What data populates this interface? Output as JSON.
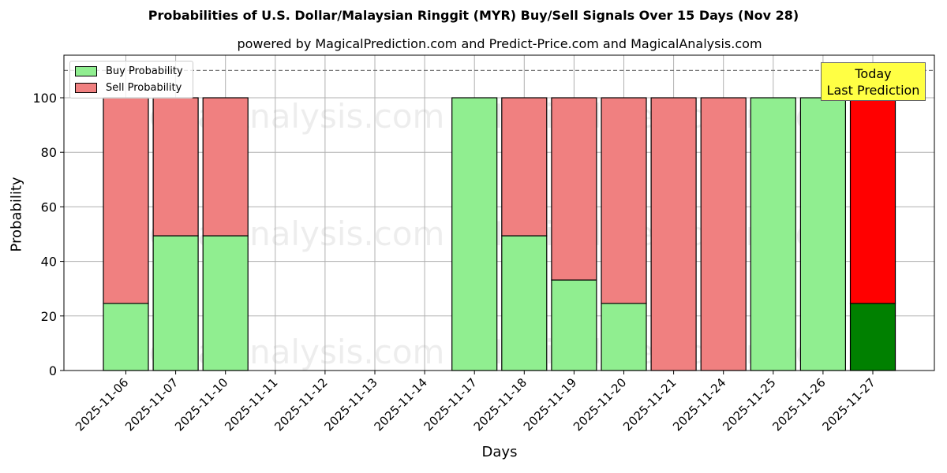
{
  "chart_data": {
    "type": "bar",
    "stacked": true,
    "title": "Probabilities of U.S. Dollar/Malaysian Ringgit (MYR) Buy/Sell Signals Over 15 Days (Nov 28)",
    "subtitle": "powered by MagicalPrediction.com and Predict-Price.com and MagicalAnalysis.com",
    "xlabel": "Days",
    "ylabel": "Probability",
    "ylim": [
      0,
      115
    ],
    "yticks": [
      0,
      20,
      40,
      60,
      80,
      100
    ],
    "reference_line": 110,
    "grid": true,
    "legend_position": "upper left",
    "categories": [
      "2025-11-06",
      "2025-11-07",
      "2025-11-10",
      "2025-11-11",
      "2025-11-12",
      "2025-11-13",
      "2025-11-14",
      "2025-11-17",
      "2025-11-18",
      "2025-11-19",
      "2025-11-20",
      "2025-11-21",
      "2025-11-24",
      "2025-11-25",
      "2025-11-26",
      "2025-11-27"
    ],
    "series": [
      {
        "name": "Buy Probability",
        "color": "#90ee90",
        "values": [
          24.6,
          49.4,
          49.4,
          null,
          null,
          null,
          null,
          100,
          49.4,
          33.2,
          24.6,
          0,
          0,
          100,
          100,
          24.6
        ]
      },
      {
        "name": "Sell Probability",
        "color": "#f08080",
        "values": [
          75.4,
          50.6,
          50.6,
          null,
          null,
          null,
          null,
          0,
          50.6,
          66.8,
          75.4,
          100,
          100,
          0,
          0,
          75.4
        ]
      }
    ],
    "highlight": {
      "category": "2025-11-27",
      "buy_color": "#008000",
      "sell_color": "#ff0000"
    },
    "annotation": "Today\nLast Prediction",
    "watermarks": [
      "MagicalAnalysis.com",
      "MagicalPrediction.com"
    ]
  },
  "legend": {
    "buy": "Buy Probability",
    "sell": "Sell Probability"
  },
  "annotation": {
    "line1": "Today",
    "line2": "Last Prediction"
  }
}
